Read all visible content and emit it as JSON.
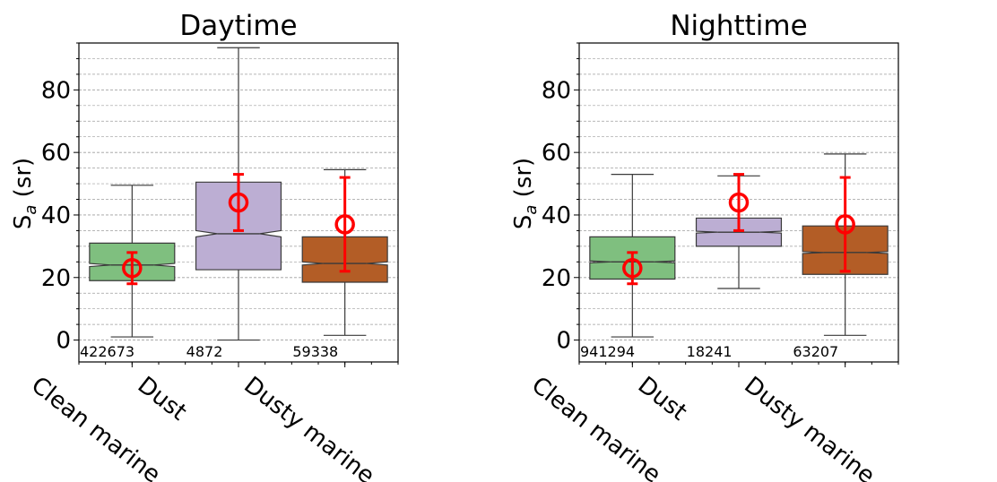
{
  "chart_data": [
    {
      "type": "box",
      "title": "Daytime",
      "ylabel_main": "S",
      "ylabel_sub": "a",
      "ylabel_unit": " (sr)",
      "ylim": [
        -7,
        95
      ],
      "yticks": [
        0,
        20,
        40,
        60,
        80
      ],
      "grid": "horizontal dashed minor",
      "categories": [
        "Clean marine",
        "Dust",
        "Dusty marine"
      ],
      "counts": [
        "422673",
        "4872",
        "59338"
      ],
      "boxes": [
        {
          "whisker_low": 1,
          "q1": 19,
          "median": 24,
          "q3": 31,
          "whisker_high": 49.5,
          "notch_low": 23.5,
          "notch_high": 24.5,
          "color": "#7fbf7f"
        },
        {
          "whisker_low": 0,
          "q1": 22.5,
          "median": 34,
          "q3": 50.5,
          "whisker_high": 93.5,
          "notch_low": 33,
          "notch_high": 35,
          "color": "#bcaed3"
        },
        {
          "whisker_low": 1.5,
          "q1": 18.5,
          "median": 24.5,
          "q3": 33,
          "whisker_high": 54.5,
          "notch_low": 24,
          "notch_high": 25,
          "color": "#b35d26"
        }
      ],
      "reference_points": [
        {
          "mean": 23,
          "err_low": 18,
          "err_high": 28
        },
        {
          "mean": 44,
          "err_low": 35,
          "err_high": 53
        },
        {
          "mean": 37,
          "err_low": 22,
          "err_high": 52
        }
      ]
    },
    {
      "type": "box",
      "title": "Nighttime",
      "ylabel_main": "S",
      "ylabel_sub": "a",
      "ylabel_unit": " (sr)",
      "ylim": [
        -7,
        95
      ],
      "yticks": [
        0,
        20,
        40,
        60,
        80
      ],
      "grid": "horizontal dashed minor",
      "categories": [
        "Clean marine",
        "Dust",
        "Dusty marine"
      ],
      "counts": [
        "941294",
        "18241",
        "63207"
      ],
      "boxes": [
        {
          "whisker_low": 1,
          "q1": 19.5,
          "median": 25,
          "q3": 33,
          "whisker_high": 53,
          "notch_low": 24.7,
          "notch_high": 25.3,
          "color": "#7fbf7f"
        },
        {
          "whisker_low": 16.5,
          "q1": 30,
          "median": 34.5,
          "q3": 39,
          "whisker_high": 52.5,
          "notch_low": 34.2,
          "notch_high": 34.8,
          "color": "#bcaed3"
        },
        {
          "whisker_low": 1.5,
          "q1": 21,
          "median": 28,
          "q3": 36.5,
          "whisker_high": 59.5,
          "notch_low": 27.7,
          "notch_high": 28.3,
          "color": "#b35d26"
        }
      ],
      "reference_points": [
        {
          "mean": 23,
          "err_low": 18,
          "err_high": 28
        },
        {
          "mean": 44,
          "err_low": 35,
          "err_high": 53
        },
        {
          "mean": 37,
          "err_low": 22,
          "err_high": 52
        }
      ]
    }
  ],
  "colors": {
    "reference_marker": "#ff0000",
    "box_edge": "#3a3a3a",
    "grid": "#9e9e9e"
  }
}
